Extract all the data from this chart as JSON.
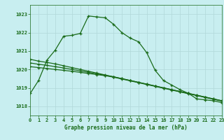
{
  "title": "Graphe pression niveau de la mer (hPa)",
  "bg_color": "#c8eef0",
  "grid_color": "#b0d8d8",
  "line_color": "#1a6b1a",
  "xlim": [
    0,
    23
  ],
  "ylim": [
    1017.5,
    1023.5
  ],
  "yticks": [
    1018,
    1019,
    1020,
    1021,
    1022,
    1023
  ],
  "xticks": [
    0,
    1,
    2,
    3,
    4,
    5,
    6,
    7,
    8,
    9,
    10,
    11,
    12,
    13,
    14,
    15,
    16,
    17,
    18,
    19,
    20,
    21,
    22,
    23
  ],
  "series1_x": [
    0,
    1,
    2,
    3,
    4,
    5,
    6,
    7,
    8,
    9,
    10,
    11,
    12,
    13,
    14,
    15,
    16,
    17,
    18,
    19,
    20,
    21,
    22,
    23
  ],
  "series1_y": [
    1018.7,
    1019.4,
    1020.5,
    1021.05,
    1021.8,
    1021.85,
    1021.95,
    1022.9,
    1022.85,
    1022.8,
    1022.45,
    1022.0,
    1021.7,
    1021.5,
    1020.9,
    1019.95,
    1019.4,
    1019.15,
    1018.9,
    1018.7,
    1018.4,
    1018.35,
    1018.3,
    1018.2
  ],
  "series2_x": [
    0,
    1,
    2,
    3,
    4,
    5,
    6,
    7,
    8,
    9,
    10,
    11,
    12,
    13,
    14,
    15,
    16,
    17,
    18,
    19,
    20,
    21,
    22,
    23
  ],
  "series2_y": [
    1020.55,
    1020.45,
    1020.38,
    1020.3,
    1020.2,
    1020.1,
    1020.0,
    1019.9,
    1019.8,
    1019.7,
    1019.6,
    1019.5,
    1019.4,
    1019.3,
    1019.2,
    1019.1,
    1019.0,
    1018.9,
    1018.8,
    1018.7,
    1018.6,
    1018.5,
    1018.4,
    1018.3
  ],
  "series3_x": [
    0,
    1,
    2,
    3,
    4,
    5,
    6,
    7,
    8,
    9,
    10,
    11,
    12,
    13,
    14,
    15,
    16,
    17,
    18,
    19,
    20,
    21,
    22,
    23
  ],
  "series3_y": [
    1020.35,
    1020.28,
    1020.22,
    1020.15,
    1020.08,
    1020.0,
    1019.92,
    1019.84,
    1019.76,
    1019.68,
    1019.6,
    1019.5,
    1019.4,
    1019.3,
    1019.2,
    1019.1,
    1019.0,
    1018.9,
    1018.8,
    1018.7,
    1018.6,
    1018.5,
    1018.4,
    1018.3
  ],
  "series4_x": [
    0,
    1,
    2,
    3,
    4,
    5,
    6,
    7,
    8,
    9,
    10,
    11,
    12,
    13,
    14,
    15,
    16,
    17,
    18,
    19,
    20,
    21,
    22,
    23
  ],
  "series4_y": [
    1020.15,
    1020.1,
    1020.05,
    1020.0,
    1019.95,
    1019.9,
    1019.84,
    1019.78,
    1019.72,
    1019.66,
    1019.58,
    1019.48,
    1019.38,
    1019.28,
    1019.18,
    1019.08,
    1018.98,
    1018.88,
    1018.78,
    1018.68,
    1018.58,
    1018.48,
    1018.38,
    1018.28
  ]
}
